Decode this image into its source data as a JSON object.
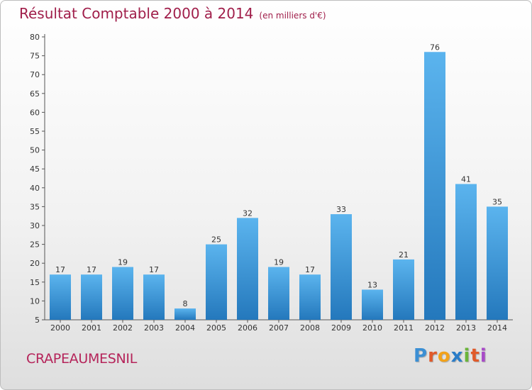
{
  "header": {
    "title": "Résultat Comptable 2000 à 2014",
    "subtitle": "(en milliers d'€)"
  },
  "footer": {
    "commune": "CRAPEAUMESNIL",
    "logo_letters": [
      "P",
      "r",
      "o",
      "x",
      "i",
      "t",
      "i"
    ],
    "logo_colors": [
      "#3b8fd4",
      "#e05a2a",
      "#f2a21a",
      "#2a7dc8",
      "#6ab43a",
      "#e05a2a",
      "#a84ac8"
    ]
  },
  "colors": {
    "bar": "#3a9ee0",
    "bar_light": "#5bb4ee",
    "bar_dark": "#2478bc",
    "title": "#a01e4a",
    "commune": "#b5245a"
  },
  "chart_data": {
    "type": "bar",
    "categories": [
      "2000",
      "2001",
      "2002",
      "2003",
      "2004",
      "2005",
      "2006",
      "2007",
      "2008",
      "2009",
      "2010",
      "2011",
      "2012",
      "2013",
      "2014"
    ],
    "values": [
      17,
      17,
      19,
      17,
      8,
      25,
      32,
      19,
      17,
      33,
      13,
      21,
      76,
      41,
      35
    ],
    "ylim": [
      5,
      80
    ],
    "yticks": [
      5,
      10,
      15,
      20,
      25,
      30,
      35,
      40,
      45,
      50,
      55,
      60,
      65,
      70,
      75,
      80
    ],
    "grid": false,
    "data_labels": true
  }
}
